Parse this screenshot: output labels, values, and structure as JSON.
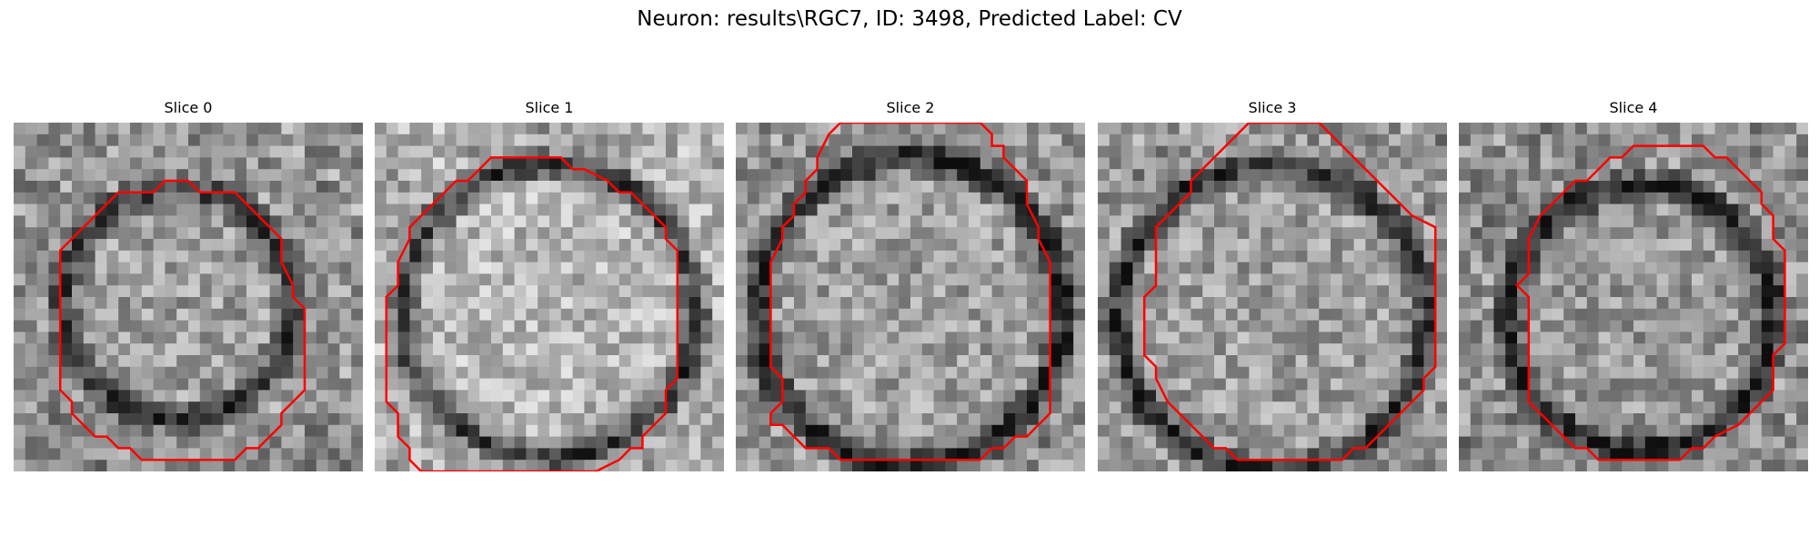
{
  "figure": {
    "title": "Neuron: results\\RGC7, ID: 3498, Predicted Label: CV"
  },
  "panels": [
    {
      "title": "Slice 0"
    },
    {
      "title": "Slice 1"
    },
    {
      "title": "Slice 2"
    },
    {
      "title": "Slice 3"
    },
    {
      "title": "Slice 4"
    }
  ],
  "colors": {
    "contour": "#ff0000",
    "background": "#ffffff"
  },
  "image_style": "grayscale microscopy patches with a red segmentation contour around a roughly circular neuron"
}
